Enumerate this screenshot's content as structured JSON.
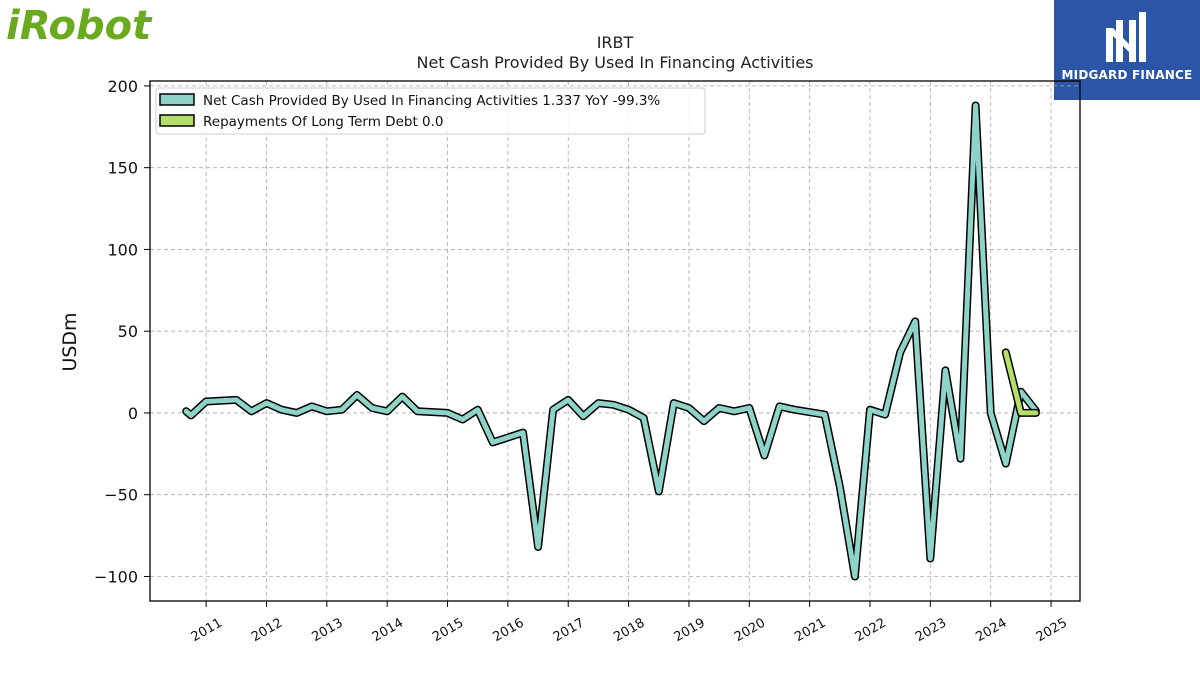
{
  "logos": {
    "left_brand": "iRobot",
    "left_color": "#6aaa1e",
    "right_brand": "MIDGARD FINANCE",
    "right_bg": "#2b56a8"
  },
  "chart_data": {
    "type": "line",
    "title": "IRBT",
    "subtitle": "Net Cash Provided By Used In Financing Activities",
    "ylabel": "USDm",
    "ylim": [
      -115,
      203
    ],
    "yticks": [
      200,
      150,
      100,
      50,
      0,
      -50,
      -100
    ],
    "ytick_labels": [
      "200",
      "150",
      "100",
      "50",
      "0",
      "−50",
      "−100"
    ],
    "xlim": [
      2010.07,
      2025.48
    ],
    "xticks": [
      2011,
      2012,
      2013,
      2014,
      2015,
      2016,
      2017,
      2018,
      2019,
      2020,
      2021,
      2022,
      2023,
      2024,
      2025
    ],
    "grid": true,
    "legend_position": "top-left",
    "series": [
      {
        "name": "Net Cash Provided By Used In Financing Activities",
        "legend_label": "Net Cash Provided By Used In Financing Activities  1.337 YoY -99.3%",
        "color": "#8dd3c7",
        "x": [
          2010.67,
          2010.75,
          2011.0,
          2011.5,
          2011.75,
          2012.0,
          2012.25,
          2012.5,
          2012.75,
          2013.0,
          2013.25,
          2013.5,
          2013.75,
          2014.0,
          2014.25,
          2014.5,
          2015.0,
          2015.25,
          2015.5,
          2015.75,
          2016.25,
          2016.5,
          2016.75,
          2017.0,
          2017.25,
          2017.5,
          2017.75,
          2018.0,
          2018.25,
          2018.5,
          2018.75,
          2019.0,
          2019.25,
          2019.5,
          2019.75,
          2020.0,
          2020.25,
          2020.5,
          2020.75,
          2021.25,
          2021.5,
          2021.75,
          2022.0,
          2022.25,
          2022.5,
          2022.75,
          2023.0,
          2023.25,
          2023.5,
          2023.75,
          2024.0,
          2024.25,
          2024.5,
          2024.75
        ],
        "values": [
          1.0,
          -1.5,
          7.0,
          8.0,
          1.0,
          6.0,
          2.0,
          0.0,
          4.0,
          1.0,
          2.0,
          11.0,
          3.0,
          1.0,
          10.0,
          1.0,
          0.0,
          -4.0,
          2.0,
          -18.0,
          -12.0,
          -82.0,
          2.0,
          8.0,
          -2.0,
          6.0,
          5.0,
          2.0,
          -3.0,
          -48.0,
          6.0,
          3.0,
          -5.0,
          3.0,
          1.0,
          3.0,
          -26.0,
          4.0,
          2.0,
          -1.0,
          -45.0,
          -100.0,
          2.0,
          -1.0,
          37.0,
          56.0,
          -89.0,
          26.0,
          -28.0,
          188.0,
          0.0,
          -31.0,
          13.0,
          1.337
        ]
      },
      {
        "name": "Repayments Of Long Term Debt",
        "legend_label": "Repayments Of Long Term Debt  0.0",
        "color": "#b3de69",
        "x": [
          2024.25,
          2024.5,
          2024.75
        ],
        "values": [
          37.0,
          0.0,
          0.0
        ]
      }
    ]
  }
}
